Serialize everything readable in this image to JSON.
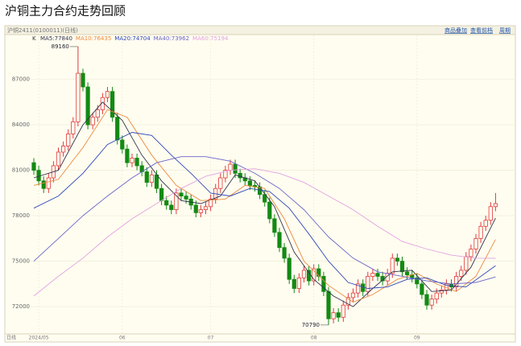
{
  "header": {
    "title": "沪铜主力合约走势回顾"
  },
  "toolbar": {
    "symbol": "沪铜2411(0100011)(日线)",
    "links": [
      "商品叠加",
      "查看前档",
      "周期"
    ]
  },
  "chart_data": {
    "type": "candlestick",
    "period_label": "日线",
    "kline_label": "K",
    "categories": [
      null,
      "2024/05",
      null,
      null,
      null,
      null,
      null,
      null,
      null,
      null,
      null,
      null,
      null,
      null,
      null,
      null,
      null,
      null,
      "06",
      null,
      null,
      null,
      null,
      null,
      null,
      null,
      null,
      null,
      null,
      null,
      null,
      null,
      null,
      null,
      null,
      null,
      "07",
      null,
      null,
      null,
      null,
      null,
      null,
      null,
      null,
      null,
      null,
      null,
      null,
      null,
      null,
      null,
      null,
      null,
      null,
      null,
      null,
      "08",
      null,
      null,
      null,
      null,
      null,
      null,
      null,
      null,
      null,
      null,
      null,
      null,
      null,
      null,
      null,
      null,
      null,
      null,
      null,
      null,
      "09",
      null,
      null,
      null,
      null,
      null,
      null,
      null,
      null,
      null,
      null,
      null,
      null,
      null,
      null,
      null,
      null
    ],
    "open": [
      81500,
      81000,
      80300,
      79800,
      80500,
      81300,
      82200,
      82600,
      83400,
      84200,
      87400,
      86500,
      84000,
      84500,
      85000,
      85800,
      86200,
      84500,
      83000,
      82400,
      81500,
      81800,
      81300,
      80900,
      80200,
      80700,
      79800,
      79000,
      78700,
      78400,
      79500,
      79300,
      79100,
      78700,
      78200,
      78400,
      78600,
      79100,
      79800,
      80500,
      81000,
      81400,
      80800,
      80500,
      80300,
      80000,
      79900,
      79400,
      78900,
      77800,
      76900,
      75900,
      75200,
      73800,
      73200,
      73900,
      74400,
      73700,
      74500,
      74000,
      73000,
      71200,
      71600,
      71300,
      72100,
      72600,
      72900,
      73500,
      73000,
      74000,
      74200,
      74000,
      73700,
      74200,
      75200,
      75000,
      74300,
      74100,
      73900,
      73500,
      72800,
      72100,
      72500,
      72900,
      73100,
      73500,
      73300,
      74000,
      74400,
      75300,
      75800,
      76500,
      77300,
      77700,
      78600
    ],
    "close": [
      81000,
      80300,
      79800,
      80500,
      81300,
      82200,
      82600,
      83400,
      84200,
      87400,
      86500,
      84000,
      84500,
      85000,
      85800,
      86200,
      84500,
      83000,
      82400,
      81500,
      81800,
      81300,
      80900,
      80200,
      80700,
      79800,
      79000,
      78700,
      78400,
      79500,
      79300,
      79100,
      78700,
      78200,
      78400,
      78600,
      79100,
      79800,
      80500,
      81000,
      81400,
      80800,
      80500,
      80300,
      80000,
      79900,
      79400,
      78900,
      77800,
      76900,
      75900,
      75200,
      73800,
      73200,
      73900,
      74400,
      73700,
      74500,
      74000,
      73000,
      71200,
      71600,
      71300,
      72100,
      72600,
      72900,
      73500,
      73000,
      74000,
      74200,
      74000,
      73700,
      74200,
      75200,
      75000,
      74300,
      74100,
      73900,
      73500,
      72800,
      72100,
      72500,
      72900,
      73100,
      73500,
      73300,
      74000,
      74400,
      75300,
      75800,
      76500,
      77300,
      77700,
      78600,
      78800
    ],
    "high": [
      81800,
      81300,
      80600,
      80800,
      81600,
      82500,
      82900,
      83700,
      84500,
      89160,
      87700,
      86800,
      84800,
      85300,
      86100,
      86500,
      86500,
      84800,
      83300,
      82700,
      82100,
      82100,
      81600,
      81200,
      81000,
      81000,
      80100,
      79300,
      79000,
      79800,
      79800,
      79600,
      79400,
      79000,
      78700,
      78900,
      79400,
      80100,
      80800,
      81300,
      81700,
      81700,
      81100,
      80800,
      80600,
      80300,
      80200,
      79700,
      79200,
      78100,
      77200,
      76200,
      75500,
      74100,
      74200,
      74700,
      74700,
      74800,
      74800,
      74300,
      73300,
      71900,
      71900,
      72400,
      72900,
      73200,
      73800,
      73800,
      74300,
      74500,
      74500,
      74300,
      74500,
      75500,
      75500,
      75300,
      74600,
      74400,
      74200,
      73800,
      73100,
      72800,
      73200,
      73400,
      73800,
      73800,
      74300,
      74700,
      75600,
      76100,
      76800,
      77600,
      78000,
      78900,
      79500
    ],
    "low": [
      80700,
      80000,
      79500,
      79500,
      80200,
      81000,
      81900,
      82300,
      83100,
      83900,
      86200,
      83700,
      83700,
      84200,
      84700,
      85500,
      84200,
      82700,
      82100,
      81200,
      81200,
      81000,
      80600,
      79900,
      79900,
      79500,
      78700,
      78400,
      78100,
      78100,
      79000,
      78800,
      78400,
      77900,
      77900,
      78100,
      78300,
      78800,
      79500,
      80200,
      80700,
      80500,
      80200,
      80000,
      79700,
      79600,
      79100,
      78600,
      77500,
      76600,
      75600,
      74900,
      73500,
      72900,
      72900,
      73600,
      73400,
      73400,
      73700,
      72700,
      70790,
      70900,
      71000,
      71000,
      71800,
      72300,
      72600,
      72700,
      72700,
      73700,
      73700,
      73400,
      73400,
      73900,
      74700,
      74000,
      73800,
      73600,
      73200,
      72500,
      71800,
      71800,
      72200,
      72600,
      72800,
      73000,
      73000,
      73700,
      74100,
      75000,
      75500,
      76200,
      77000,
      77400,
      78300
    ],
    "up_color": "#e03a3a",
    "down_color": "#138a13",
    "annotations": [
      {
        "text": "89160",
        "index": 9,
        "value": 89160
      },
      {
        "text": "70790",
        "index": 60,
        "value": 70790
      }
    ],
    "series": [
      {
        "name": "MA5:77840",
        "color": "#33334d",
        "x": [
          0,
          5,
          10,
          14,
          18,
          22,
          26,
          30,
          34,
          38,
          41,
          45,
          49,
          53,
          57,
          61,
          65,
          69,
          73,
          77,
          81,
          85,
          89,
          94
        ],
        "values": [
          80500,
          81000,
          84000,
          85500,
          84300,
          82000,
          80300,
          79000,
          78800,
          79300,
          80700,
          80300,
          78600,
          75600,
          73800,
          72700,
          72000,
          73200,
          74300,
          74400,
          73000,
          73100,
          74600,
          77840
        ]
      },
      {
        "name": "MA10:76435",
        "color": "#ec8a3c",
        "x": [
          0,
          5,
          10,
          15,
          19,
          24,
          29,
          34,
          39,
          43,
          47,
          51,
          55,
          60,
          65,
          69,
          74,
          78,
          82,
          86,
          90,
          94
        ],
        "values": [
          80000,
          80400,
          82500,
          85000,
          84500,
          82000,
          80000,
          79000,
          79100,
          80000,
          79800,
          77800,
          75000,
          73400,
          72300,
          72800,
          73800,
          74200,
          73500,
          73000,
          74000,
          76435
        ]
      },
      {
        "name": "MA20:74704",
        "color": "#2f47b8",
        "x": [
          0,
          5,
          10,
          15,
          20,
          24,
          28,
          32,
          36,
          40,
          44,
          48,
          52,
          56,
          60,
          64,
          68,
          72,
          76,
          80,
          84,
          88,
          94
        ],
        "values": [
          78500,
          79300,
          80800,
          82700,
          83500,
          83300,
          82000,
          80800,
          79500,
          79300,
          79800,
          79600,
          78500,
          76800,
          75000,
          73600,
          73200,
          73300,
          73800,
          73900,
          73400,
          73300,
          74704
        ]
      },
      {
        "name": "MA40:73962",
        "color": "#6a64c8",
        "x": [
          0,
          5,
          10,
          15,
          20,
          25,
          30,
          35,
          40,
          45,
          50,
          55,
          60,
          65,
          70,
          75,
          80,
          85,
          90,
          94
        ],
        "values": [
          75000,
          76500,
          78000,
          79300,
          80500,
          81500,
          81900,
          81900,
          81600,
          80800,
          79800,
          78400,
          76600,
          75200,
          74300,
          74000,
          73700,
          73500,
          73600,
          73962
        ]
      },
      {
        "name": "MA60:75194",
        "color": "#e2a2e2",
        "x": [
          0,
          5,
          10,
          15,
          20,
          25,
          30,
          35,
          40,
          45,
          50,
          55,
          60,
          65,
          70,
          75,
          80,
          85,
          90,
          94
        ],
        "values": [
          72700,
          74000,
          75200,
          76600,
          77800,
          78800,
          79800,
          80600,
          81000,
          81100,
          80800,
          80200,
          79300,
          78400,
          77300,
          76300,
          75800,
          75400,
          75200,
          75194
        ]
      }
    ],
    "ylim": [
      70200,
      89900
    ],
    "yticks": [
      72000,
      75000,
      78000,
      81000,
      84000,
      87000
    ],
    "grid": true
  }
}
